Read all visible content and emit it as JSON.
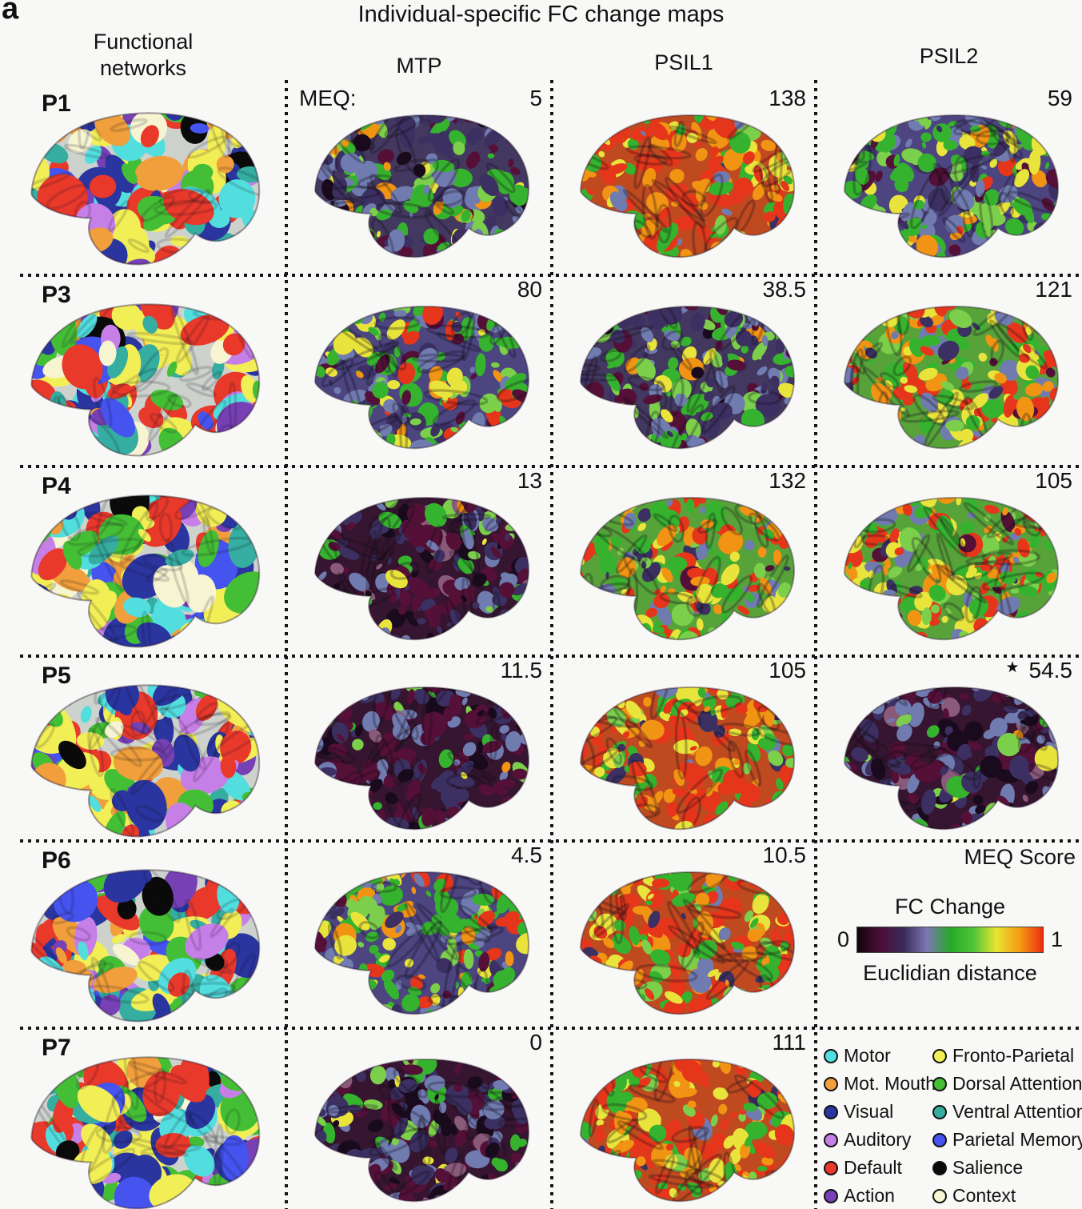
{
  "panel_label": "a",
  "title": "Individual-specific FC change maps",
  "columns": {
    "networks_line1": "Functional",
    "networks_line2": "networks",
    "mtp": "MTP",
    "psil1": "PSIL1",
    "psil2": "PSIL2"
  },
  "meq_prefix": "MEQ:",
  "meq_score_label": "MEQ Score",
  "rows": [
    {
      "label": "P1",
      "scores": {
        "mtp": "5",
        "psil1": "138",
        "psil2": "59"
      },
      "levels": {
        "mtp": "low",
        "psil1": "veryhigh",
        "psil2": "mid"
      }
    },
    {
      "label": "P3",
      "scores": {
        "mtp": "80",
        "psil1": "38.5",
        "psil2": "121"
      },
      "levels": {
        "mtp": "mid",
        "psil1": "low",
        "psil2": "high"
      }
    },
    {
      "label": "P4",
      "scores": {
        "mtp": "13",
        "psil1": "132",
        "psil2": "105"
      },
      "levels": {
        "mtp": "verylow",
        "psil1": "high",
        "psil2": "high"
      }
    },
    {
      "label": "P5",
      "scores": {
        "mtp": "11.5",
        "psil1": "105",
        "psil2": "54.5"
      },
      "psil2_marker": "★",
      "levels": {
        "mtp": "verylow",
        "psil1": "veryhigh",
        "psil2": "verylow"
      }
    },
    {
      "label": "P6",
      "scores": {
        "mtp": "4.5",
        "psil1": "10.5"
      },
      "levels": {
        "mtp": "mid",
        "psil1": "veryhigh"
      }
    },
    {
      "label": "P7",
      "scores": {
        "mtp": "0",
        "psil1": "111"
      },
      "levels": {
        "mtp": "verylow",
        "psil1": "veryhigh"
      }
    }
  ],
  "colorbar": {
    "title": "FC Change",
    "min_label": "0",
    "max_label": "1",
    "caption": "Euclidian distance",
    "gradient": [
      "#120409",
      "#4c0e38",
      "#3a2a58",
      "#7d76b4",
      "#28a828",
      "#4ec437",
      "#e9e431",
      "#f59b13",
      "#ee2d12"
    ]
  },
  "network_legend": {
    "left": [
      {
        "name": "Motor",
        "color": "#52dede"
      },
      {
        "name": "Mot. Mouth",
        "color": "#f09f3c"
      },
      {
        "name": "Visual",
        "color": "#2a35a0"
      },
      {
        "name": "Auditory",
        "color": "#c77fe8"
      },
      {
        "name": "Default",
        "color": "#e8392b"
      },
      {
        "name": "Action",
        "color": "#7741b5"
      }
    ],
    "right": [
      {
        "name": "Fronto-Parietal",
        "color": "#f2ef56"
      },
      {
        "name": "Dorsal Attention",
        "color": "#44bf35"
      },
      {
        "name": "Ventral Attention",
        "color": "#35ada0"
      },
      {
        "name": "Parietal Memory",
        "color": "#4553ef"
      },
      {
        "name": "Salience",
        "color": "#0a0a0a"
      },
      {
        "name": "Context",
        "color": "#f7f4d2"
      }
    ]
  }
}
